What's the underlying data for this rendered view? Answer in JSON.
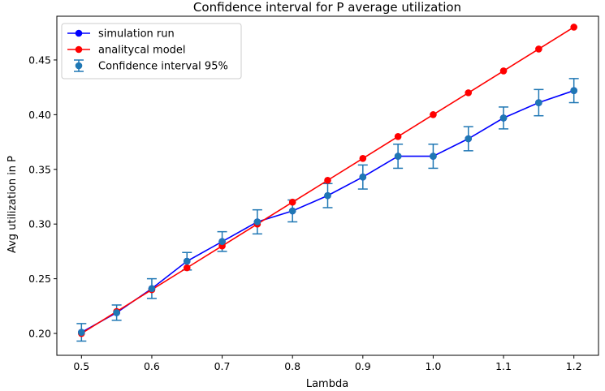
{
  "chart_data": {
    "type": "line",
    "title": "Confidence interval for P average utilization",
    "xlabel": "Lambda",
    "ylabel": "Avg utilization in P",
    "xlim": [
      0.465,
      1.235
    ],
    "ylim": [
      0.18,
      0.49
    ],
    "x_ticks": [
      0.5,
      0.6,
      0.7,
      0.8,
      0.9,
      1.0,
      1.1,
      1.2
    ],
    "x_tick_labels": [
      "0.5",
      "0.6",
      "0.7",
      "0.8",
      "0.9",
      "1.0",
      "1.1",
      "1.2"
    ],
    "y_ticks": [
      0.2,
      0.25,
      0.3,
      0.35,
      0.4,
      0.45
    ],
    "y_tick_labels": [
      "0.20",
      "0.25",
      "0.30",
      "0.35",
      "0.40",
      "0.45"
    ],
    "grid": false,
    "legend_position": "top-left",
    "x": [
      0.5,
      0.55,
      0.6,
      0.65,
      0.7,
      0.75,
      0.8,
      0.85,
      0.9,
      0.95,
      1.0,
      1.05,
      1.1,
      1.15,
      1.2
    ],
    "series": [
      {
        "name": "simulation run",
        "color": "#0000ff",
        "values": [
          0.201,
          0.219,
          0.241,
          0.266,
          0.284,
          0.302,
          0.312,
          0.326,
          0.343,
          0.362,
          0.362,
          0.378,
          0.397,
          0.411,
          0.422
        ]
      },
      {
        "name": "analitycal model",
        "color": "#ff0000",
        "values": [
          0.2,
          0.22,
          0.24,
          0.26,
          0.28,
          0.3,
          0.32,
          0.34,
          0.36,
          0.38,
          0.4,
          0.42,
          0.44,
          0.46,
          0.48
        ]
      }
    ],
    "error_bars": {
      "name": "Confidence interval 95%",
      "color": "#1f77b4",
      "centers": [
        0.201,
        0.219,
        0.241,
        0.266,
        0.284,
        0.302,
        0.312,
        0.326,
        0.343,
        0.362,
        0.362,
        0.378,
        0.397,
        0.411,
        0.422
      ],
      "errors": [
        0.008,
        0.007,
        0.009,
        0.008,
        0.009,
        0.011,
        0.01,
        0.011,
        0.011,
        0.011,
        0.011,
        0.011,
        0.01,
        0.012,
        0.011
      ]
    }
  }
}
